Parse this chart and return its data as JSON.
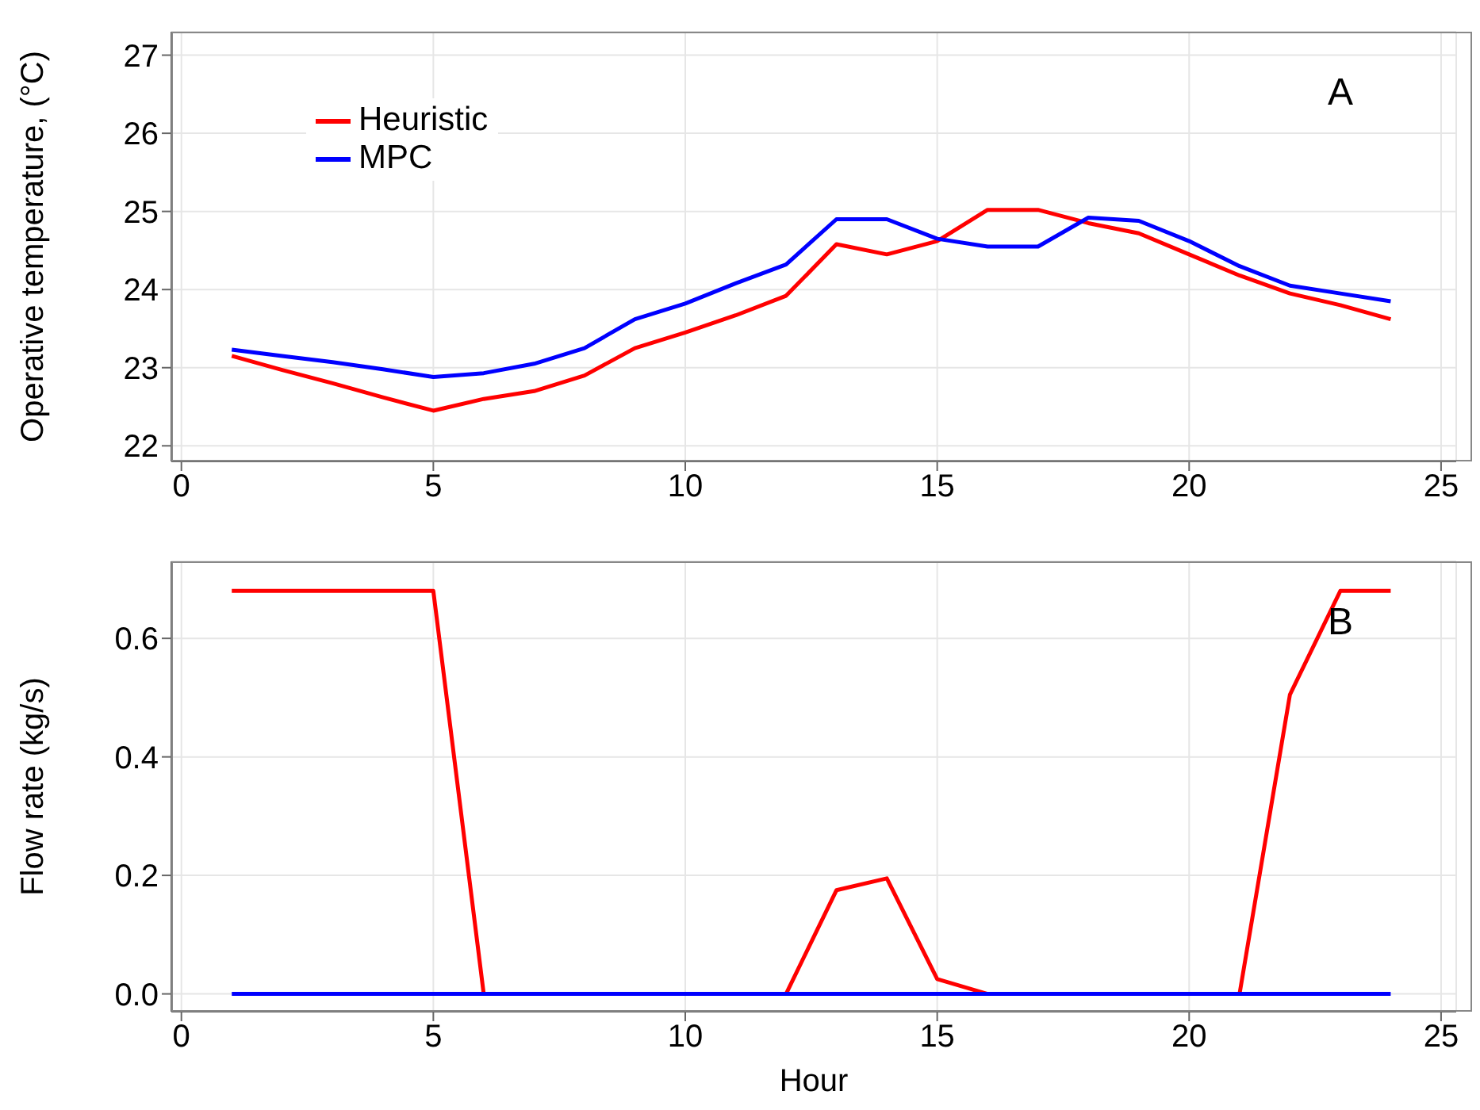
{
  "chart_data": [
    {
      "type": "line",
      "ylabel": "Operative temperature, (°C)",
      "annotations": [
        "A"
      ],
      "x": [
        1,
        2,
        3,
        4,
        5,
        6,
        7,
        8,
        9,
        10,
        11,
        12,
        13,
        14,
        15,
        16,
        17,
        18,
        19,
        20,
        21,
        22,
        23,
        24
      ],
      "series": [
        {
          "name": "Heuristic",
          "color": "#ff0000",
          "values": [
            23.15,
            22.97,
            22.8,
            22.62,
            22.45,
            22.6,
            22.7,
            22.9,
            23.25,
            23.45,
            23.67,
            23.92,
            24.58,
            24.45,
            24.62,
            25.02,
            25.02,
            24.85,
            24.72,
            24.45,
            24.18,
            23.95,
            23.8,
            23.62
          ]
        },
        {
          "name": "MPC",
          "color": "#0000ff",
          "values": [
            23.23,
            23.15,
            23.07,
            22.98,
            22.88,
            22.93,
            23.05,
            23.25,
            23.62,
            23.82,
            24.08,
            24.32,
            24.9,
            24.9,
            24.65,
            24.55,
            24.55,
            24.92,
            24.88,
            24.62,
            24.3,
            24.05,
            23.95,
            23.85
          ]
        }
      ],
      "xlim": [
        -0.2,
        25.3
      ],
      "xticks": [
        0,
        5,
        10,
        15,
        20,
        25
      ],
      "ylim": [
        21.8,
        27.3
      ],
      "yticks": [
        22,
        23,
        24,
        25,
        26,
        27
      ],
      "grid": true,
      "legend": "top left",
      "marker": "none",
      "line_style": "solid"
    },
    {
      "type": "line",
      "xlabel": "Hour",
      "ylabel": "Flow rate (kg/s)",
      "annotations": [
        "B"
      ],
      "x": [
        1,
        2,
        3,
        4,
        5,
        6,
        7,
        8,
        9,
        10,
        11,
        12,
        13,
        14,
        15,
        16,
        17,
        18,
        19,
        20,
        21,
        22,
        23,
        24
      ],
      "series": [
        {
          "color": "#ff0000",
          "values": [
            0.68,
            0.68,
            0.68,
            0.68,
            0.68,
            0,
            0,
            0,
            0,
            0,
            0,
            0,
            0.175,
            0.195,
            0.025,
            0,
            0,
            0,
            0,
            0,
            0,
            0.505,
            0.68,
            0.68
          ]
        },
        {
          "color": "#0000ff",
          "values": [
            0,
            0,
            0,
            0,
            0,
            0,
            0,
            0,
            0,
            0,
            0,
            0,
            0,
            0,
            0,
            0,
            0,
            0,
            0,
            0,
            0,
            0,
            0,
            0
          ]
        }
      ],
      "xlim": [
        -0.2,
        25.3
      ],
      "xticks": [
        0,
        5,
        10,
        15,
        20,
        25
      ],
      "ylim": [
        -0.03,
        0.73
      ],
      "yticks": [
        {
          "value": 0,
          "label": "0.0"
        },
        {
          "value": 0.2,
          "label": "0.2"
        },
        {
          "value": 0.4,
          "label": "0.4"
        },
        {
          "value": 0.6,
          "label": "0.6"
        }
      ],
      "grid": true,
      "marker": "none",
      "line_style": "solid"
    }
  ]
}
